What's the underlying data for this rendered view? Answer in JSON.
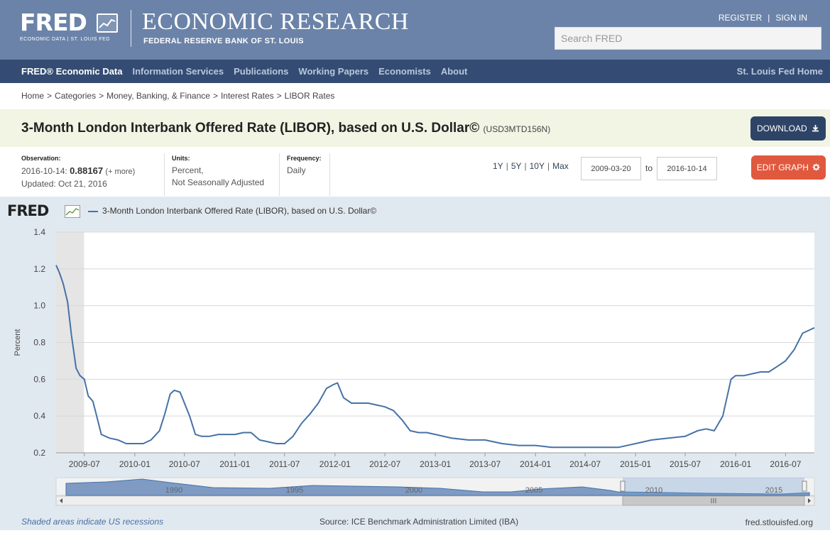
{
  "header": {
    "logo_text": "FRED",
    "logo_sub": "ECONOMIC DATA | ST. LOUIS FED",
    "title": "ECONOMIC RESEARCH",
    "subtitle": "FEDERAL RESERVE BANK OF ST. LOUIS",
    "register": "REGISTER",
    "sign_in": "SIGN IN",
    "search_placeholder": "Search FRED"
  },
  "nav": {
    "items": [
      "FRED® Economic Data",
      "Information Services",
      "Publications",
      "Working Papers",
      "Economists",
      "About"
    ],
    "right": "St. Louis Fed Home"
  },
  "breadcrumb": [
    "Home",
    "Categories",
    "Money, Banking, & Finance",
    "Interest Rates",
    "LIBOR Rates"
  ],
  "series": {
    "title": "3-Month London Interbank Offered Rate (LIBOR), based on U.S. Dollar©",
    "id": "(USD3MTD156N)",
    "download_label": "DOWNLOAD"
  },
  "meta": {
    "observation_label": "Observation:",
    "observation_date": "2016-10-14:",
    "observation_value": "0.88167",
    "observation_more": "(+ more)",
    "updated": "Updated: Oct 21, 2016",
    "units_label": "Units:",
    "units_1": "Percent,",
    "units_2": "Not Seasonally Adjusted",
    "frequency_label": "Frequency:",
    "frequency": "Daily",
    "ranges": [
      "1Y",
      "5Y",
      "10Y",
      "Max"
    ],
    "date_from": "2009-03-20",
    "to_label": "to",
    "date_to": "2016-10-14",
    "edit_label": "EDIT GRAPH"
  },
  "graph": {
    "logo_text": "FRED",
    "legend": "3-Month London Interbank Offered Rate (LIBOR), based on U.S. Dollar©",
    "recessions_note": "Shaded areas indicate US recessions",
    "source": "Source: ICE Benchmark Administration Limited (IBA)",
    "site": "fred.stlouisfed.org",
    "navigator_labels": [
      "1990",
      "1995",
      "2000",
      "2005",
      "2010",
      "2015"
    ]
  },
  "colors": {
    "header_bg": "#6b83a8",
    "nav_bg": "#344c73",
    "line": "#4572a7",
    "download_bg": "#2e4467",
    "edit_bg": "#e0593f"
  },
  "chart_data": {
    "type": "line",
    "title": "3-Month London Interbank Offered Rate (LIBOR), based on U.S. Dollar©",
    "xlabel": "",
    "ylabel": "Percent",
    "ylim": [
      0.2,
      1.4
    ],
    "yticks": [
      "0.2",
      "0.4",
      "0.6",
      "0.8",
      "1.0",
      "1.2",
      "1.4"
    ],
    "xticks": [
      "2009-07",
      "2010-01",
      "2010-07",
      "2011-01",
      "2011-07",
      "2012-01",
      "2012-07",
      "2013-01",
      "2013-07",
      "2014-01",
      "2014-07",
      "2015-01",
      "2015-07",
      "2016-01",
      "2016-07"
    ],
    "xlim": [
      "2009-03-20",
      "2016-10-14"
    ],
    "recession": [
      "2009-03-20",
      "2009-06-30"
    ],
    "series": [
      {
        "name": "3-Month London Interbank Offered Rate (LIBOR), based on U.S. Dollar©",
        "x": [
          "2009-03-20",
          "2009-04-01",
          "2009-04-15",
          "2009-05-01",
          "2009-05-15",
          "2009-06-01",
          "2009-06-15",
          "2009-07-01",
          "2009-07-15",
          "2009-08-01",
          "2009-08-15",
          "2009-09-01",
          "2009-10-01",
          "2009-11-01",
          "2009-12-01",
          "2010-01-01",
          "2010-02-01",
          "2010-03-01",
          "2010-04-01",
          "2010-04-20",
          "2010-05-10",
          "2010-05-25",
          "2010-06-15",
          "2010-07-01",
          "2010-07-20",
          "2010-08-10",
          "2010-09-01",
          "2010-10-01",
          "2010-11-01",
          "2010-12-01",
          "2011-01-01",
          "2011-02-01",
          "2011-03-01",
          "2011-04-01",
          "2011-05-01",
          "2011-06-01",
          "2011-07-01",
          "2011-08-01",
          "2011-09-01",
          "2011-10-01",
          "2011-11-01",
          "2011-12-01",
          "2011-12-25",
          "2012-01-10",
          "2012-02-01",
          "2012-03-01",
          "2012-04-01",
          "2012-05-01",
          "2012-06-01",
          "2012-07-01",
          "2012-08-01",
          "2012-09-01",
          "2012-10-01",
          "2012-11-01",
          "2012-12-01",
          "2013-01-01",
          "2013-03-01",
          "2013-05-01",
          "2013-07-01",
          "2013-09-01",
          "2013-11-01",
          "2014-01-01",
          "2014-03-01",
          "2014-05-01",
          "2014-07-01",
          "2014-09-01",
          "2014-11-01",
          "2015-01-01",
          "2015-03-01",
          "2015-05-01",
          "2015-07-01",
          "2015-08-15",
          "2015-09-15",
          "2015-10-15",
          "2015-11-15",
          "2015-12-15",
          "2016-01-01",
          "2016-02-01",
          "2016-03-01",
          "2016-04-01",
          "2016-05-01",
          "2016-06-01",
          "2016-07-01",
          "2016-08-01",
          "2016-09-01",
          "2016-10-14"
        ],
        "values": [
          1.22,
          1.18,
          1.12,
          1.02,
          0.84,
          0.66,
          0.62,
          0.6,
          0.51,
          0.48,
          0.4,
          0.3,
          0.28,
          0.27,
          0.25,
          0.25,
          0.25,
          0.27,
          0.32,
          0.41,
          0.52,
          0.54,
          0.53,
          0.47,
          0.4,
          0.3,
          0.29,
          0.29,
          0.3,
          0.3,
          0.3,
          0.31,
          0.31,
          0.27,
          0.26,
          0.25,
          0.25,
          0.29,
          0.36,
          0.41,
          0.47,
          0.55,
          0.57,
          0.58,
          0.5,
          0.47,
          0.47,
          0.47,
          0.46,
          0.45,
          0.43,
          0.38,
          0.32,
          0.31,
          0.31,
          0.3,
          0.28,
          0.27,
          0.27,
          0.25,
          0.24,
          0.24,
          0.23,
          0.23,
          0.23,
          0.23,
          0.23,
          0.25,
          0.27,
          0.28,
          0.29,
          0.32,
          0.33,
          0.32,
          0.4,
          0.6,
          0.62,
          0.62,
          0.63,
          0.64,
          0.64,
          0.67,
          0.7,
          0.76,
          0.85,
          0.88
        ]
      }
    ]
  }
}
